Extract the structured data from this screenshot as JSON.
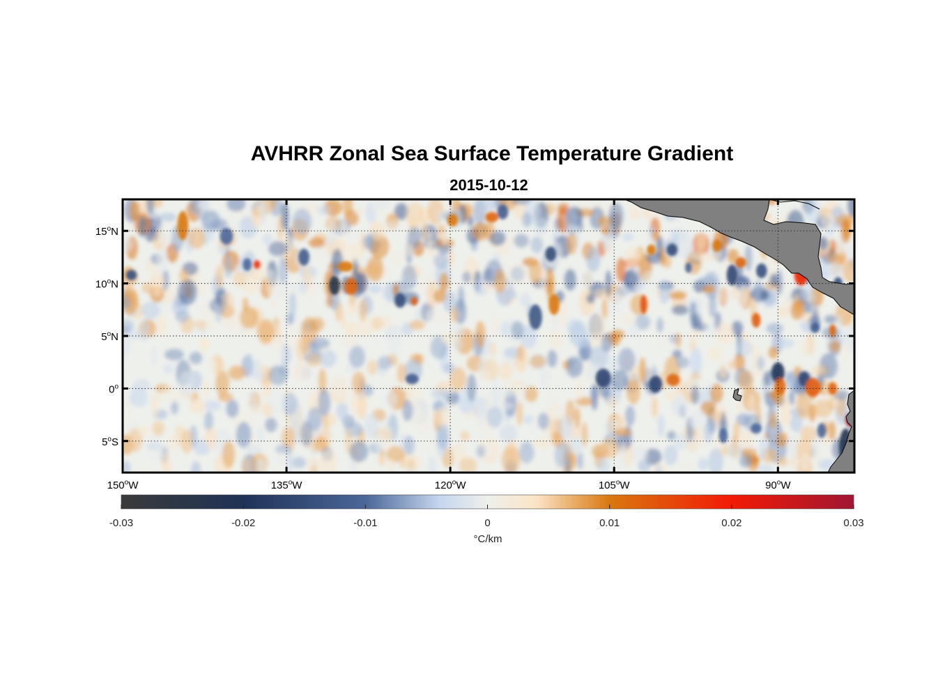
{
  "title": "AVHRR Zonal Sea Surface Temperature Gradient",
  "subtitle": "2015-10-12",
  "map": {
    "lon_range": [
      -150,
      -83
    ],
    "lat_range": [
      -8,
      18
    ],
    "grid": true,
    "y_ticks": [
      {
        "lat": 15,
        "num": "15",
        "hemi": "N"
      },
      {
        "lat": 10,
        "num": "10",
        "hemi": "N"
      },
      {
        "lat": 5,
        "num": "5",
        "hemi": "N"
      },
      {
        "lat": 0,
        "num": "0",
        "hemi": ""
      },
      {
        "lat": -5,
        "num": "5",
        "hemi": "S"
      }
    ],
    "x_ticks": [
      {
        "lon": -150,
        "num": "150",
        "hemi": "W"
      },
      {
        "lon": -135,
        "num": "135",
        "hemi": "W"
      },
      {
        "lon": -120,
        "num": "120",
        "hemi": "W"
      },
      {
        "lon": -105,
        "num": "105",
        "hemi": "W"
      },
      {
        "lon": -90,
        "num": "90",
        "hemi": "W"
      }
    ],
    "degree_symbol": "o",
    "land_color": "#808080"
  },
  "colorbar": {
    "range": [
      -0.03,
      0.03
    ],
    "ticks": [
      "-0.03",
      "-0.02",
      "-0.01",
      "0",
      "0.01",
      "0.02",
      "0.03"
    ],
    "unit": "°C/km",
    "stops": [
      {
        "v": -0.03,
        "c": "#3a3a3a"
      },
      {
        "v": -0.02,
        "c": "#1f3357"
      },
      {
        "v": -0.01,
        "c": "#4b6699"
      },
      {
        "v": -0.004,
        "c": "#c4d6ee"
      },
      {
        "v": 0,
        "c": "#eef0ec"
      },
      {
        "v": 0.004,
        "c": "#fbe4c6"
      },
      {
        "v": 0.01,
        "c": "#d9780f"
      },
      {
        "v": 0.02,
        "c": "#f21a06"
      },
      {
        "v": 0.03,
        "c": "#a01632"
      }
    ]
  },
  "features": [
    {
      "lon": -130.6,
      "lat": 9.8,
      "v": -0.024,
      "rx": 0.5,
      "ry": 0.9
    },
    {
      "lon": -129.1,
      "lat": 9.7,
      "v": 0.012,
      "rx": 0.6,
      "ry": 0.8
    },
    {
      "lon": -129.6,
      "lat": 11.6,
      "v": 0.01,
      "rx": 0.7,
      "ry": 0.5
    },
    {
      "lon": -123.3,
      "lat": 8.3,
      "v": 0.013,
      "rx": 0.3,
      "ry": 0.4
    },
    {
      "lon": -124.6,
      "lat": 8.4,
      "v": -0.015,
      "rx": 0.5,
      "ry": 0.7
    },
    {
      "lon": -137.7,
      "lat": 11.8,
      "v": 0.018,
      "rx": 0.3,
      "ry": 0.4
    },
    {
      "lon": -149.2,
      "lat": 10.8,
      "v": -0.014,
      "rx": 0.5,
      "ry": 0.5
    },
    {
      "lon": -138.6,
      "lat": 11.8,
      "v": -0.01,
      "rx": 0.4,
      "ry": 0.6
    },
    {
      "lon": -144.5,
      "lat": 15.5,
      "v": 0.01,
      "rx": 0.5,
      "ry": 1.4
    },
    {
      "lon": -140.5,
      "lat": 14.5,
      "v": -0.01,
      "rx": 0.6,
      "ry": 0.8
    },
    {
      "lon": -133.4,
      "lat": 12.5,
      "v": -0.012,
      "rx": 0.5,
      "ry": 0.8
    },
    {
      "lon": -123.5,
      "lat": 0.9,
      "v": -0.012,
      "rx": 0.6,
      "ry": 0.5
    },
    {
      "lon": -112.2,
      "lat": 6.8,
      "v": -0.013,
      "rx": 0.6,
      "ry": 1.2
    },
    {
      "lon": -110.5,
      "lat": 8.0,
      "v": 0.01,
      "rx": 0.5,
      "ry": 1.0
    },
    {
      "lon": -110.8,
      "lat": 12.8,
      "v": -0.015,
      "rx": 0.5,
      "ry": 0.7
    },
    {
      "lon": -115.2,
      "lat": 16.8,
      "v": -0.012,
      "rx": 0.5,
      "ry": 0.7
    },
    {
      "lon": -116.2,
      "lat": 16.3,
      "v": 0.012,
      "rx": 0.6,
      "ry": 0.5
    },
    {
      "lon": -119.8,
      "lat": 16.0,
      "v": 0.01,
      "rx": 0.5,
      "ry": 0.6
    },
    {
      "lon": -102.3,
      "lat": 8.0,
      "v": 0.014,
      "rx": 0.3,
      "ry": 0.9
    },
    {
      "lon": -101.6,
      "lat": 13.2,
      "v": 0.01,
      "rx": 0.4,
      "ry": 0.5
    },
    {
      "lon": -99.7,
      "lat": 13.2,
      "v": -0.015,
      "rx": 0.5,
      "ry": 0.6
    },
    {
      "lon": -98.2,
      "lat": 11.5,
      "v": -0.01,
      "rx": 0.3,
      "ry": 0.5
    },
    {
      "lon": -95.6,
      "lat": 13.6,
      "v": 0.01,
      "rx": 0.4,
      "ry": 0.6
    },
    {
      "lon": -94.2,
      "lat": 10.8,
      "v": -0.016,
      "rx": 0.5,
      "ry": 1.0
    },
    {
      "lon": -93.4,
      "lat": 12.0,
      "v": 0.012,
      "rx": 0.5,
      "ry": 0.5
    },
    {
      "lon": -91.5,
      "lat": 11.2,
      "v": -0.014,
      "rx": 0.5,
      "ry": 0.7
    },
    {
      "lon": -92.0,
      "lat": 6.5,
      "v": 0.013,
      "rx": 0.4,
      "ry": 0.7
    },
    {
      "lon": -87.9,
      "lat": 10.8,
      "v": 0.019,
      "rx": 0.6,
      "ry": 1.0
    },
    {
      "lon": -84.5,
      "lat": 10.0,
      "v": -0.014,
      "rx": 0.4,
      "ry": 0.6
    },
    {
      "lon": -106.0,
      "lat": 1.0,
      "v": -0.016,
      "rx": 0.7,
      "ry": 0.9
    },
    {
      "lon": -101.2,
      "lat": 0.4,
      "v": -0.016,
      "rx": 0.6,
      "ry": 0.8
    },
    {
      "lon": -99.6,
      "lat": 0.8,
      "v": 0.012,
      "rx": 0.6,
      "ry": 0.6
    },
    {
      "lon": -90.0,
      "lat": 1.5,
      "v": -0.02,
      "rx": 0.6,
      "ry": 1.0
    },
    {
      "lon": -89.8,
      "lat": 0.2,
      "v": 0.012,
      "rx": 0.5,
      "ry": 0.8
    },
    {
      "lon": -87.6,
      "lat": 0.9,
      "v": -0.016,
      "rx": 0.5,
      "ry": 0.7
    },
    {
      "lon": -86.8,
      "lat": 0.1,
      "v": 0.013,
      "rx": 0.7,
      "ry": 0.9
    },
    {
      "lon": -85.0,
      "lat": 0.0,
      "v": 0.012,
      "rx": 0.4,
      "ry": 0.6
    },
    {
      "lon": -85.0,
      "lat": 5.5,
      "v": 0.012,
      "rx": 0.3,
      "ry": 0.6
    },
    {
      "lon": -86.6,
      "lat": 5.8,
      "v": -0.012,
      "rx": 0.4,
      "ry": 0.5
    },
    {
      "lon": -83.8,
      "lat": -5.6,
      "v": -0.022,
      "rx": 0.6,
      "ry": 1.8
    },
    {
      "lon": -83.4,
      "lat": -3.0,
      "v": 0.024,
      "rx": 0.4,
      "ry": 0.6
    },
    {
      "lon": -83.3,
      "lat": -7.0,
      "v": -0.02,
      "rx": 0.8,
      "ry": 0.8
    },
    {
      "lon": -86.0,
      "lat": -4.0,
      "v": -0.01,
      "rx": 0.4,
      "ry": 0.7
    },
    {
      "lon": -95.0,
      "lat": -4.5,
      "v": -0.01,
      "rx": 0.4,
      "ry": 0.7
    },
    {
      "lon": -92.0,
      "lat": -3.8,
      "v": -0.01,
      "rx": 0.5,
      "ry": 0.5
    }
  ]
}
